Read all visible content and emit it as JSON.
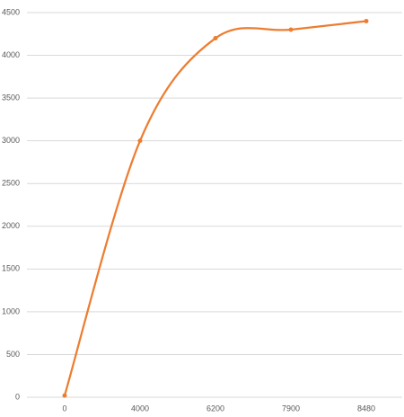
{
  "chart_data": {
    "type": "line",
    "categories": [
      "0",
      "4000",
      "6200",
      "7900",
      "8480"
    ],
    "series": [
      {
        "color": "#ed7d31",
        "values": [
          20,
          3000,
          4200,
          4300,
          4400
        ]
      }
    ],
    "smooth": true,
    "ylim": [
      0,
      4500
    ],
    "yticks": [
      0,
      500,
      1000,
      1500,
      2000,
      2500,
      3000,
      3500,
      4000,
      4500
    ],
    "grid": true
  }
}
